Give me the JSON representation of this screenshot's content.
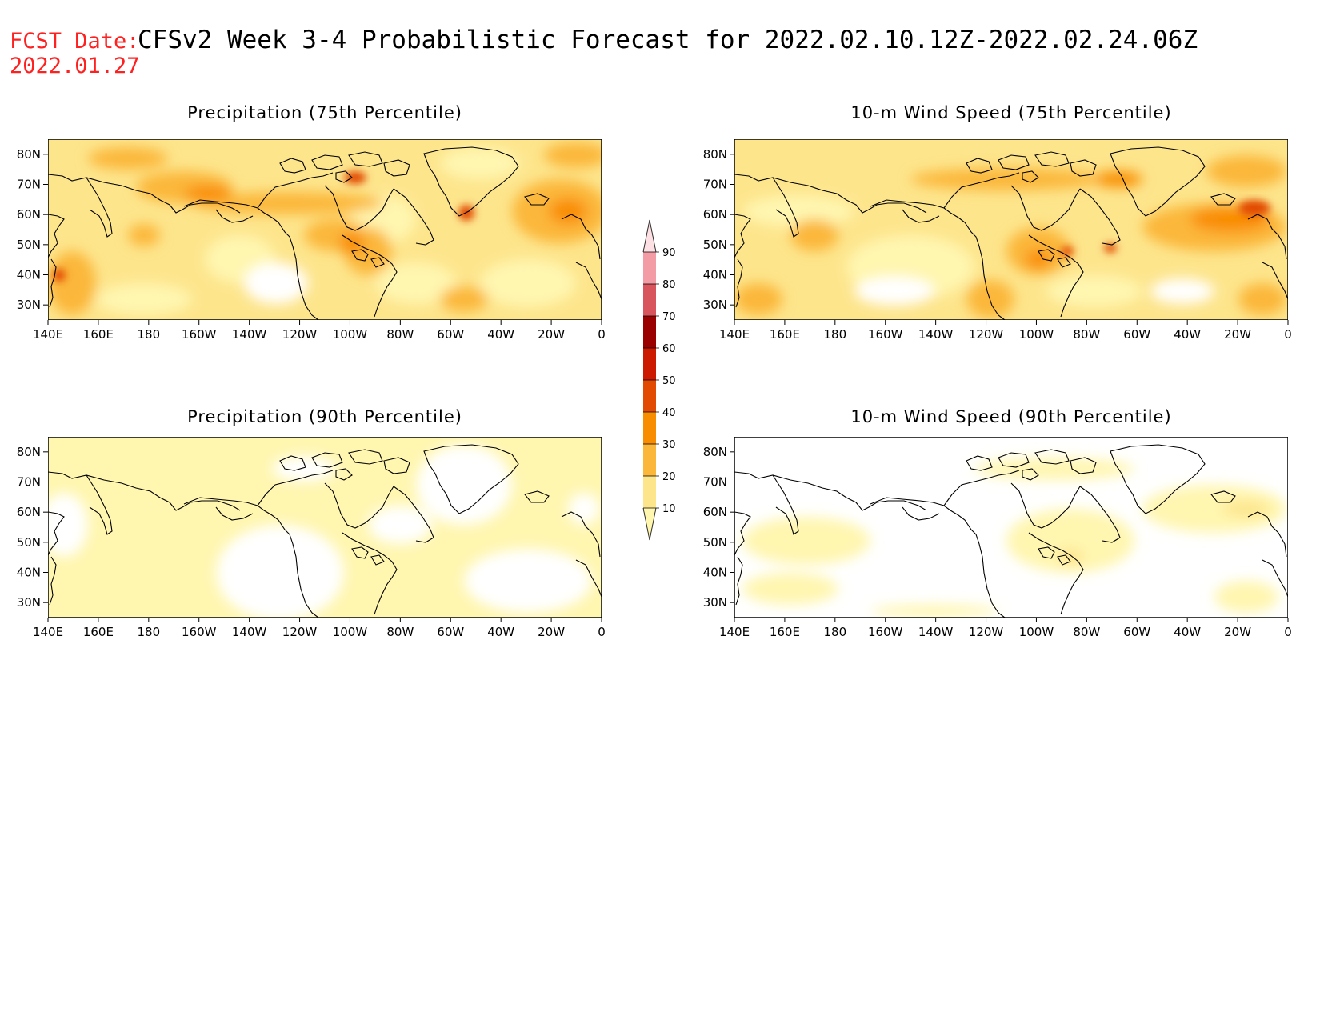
{
  "header": {
    "fcst_label": "FCST Date:",
    "fcst_date": "2022.01.27",
    "title": "CFSv2 Week 3-4 Probabilistic Forecast for 2022.02.10.12Z-2022.02.24.06Z"
  },
  "axes": {
    "x_ticks": [
      "140E",
      "160E",
      "180",
      "160W",
      "140W",
      "120W",
      "100W",
      "80W",
      "60W",
      "40W",
      "20W",
      "0"
    ],
    "y_ticks": [
      "80N",
      "70N",
      "60N",
      "50N",
      "40N",
      "30N"
    ],
    "lon_range_deg_east": [
      140,
      360
    ],
    "lat_range": [
      25,
      85
    ]
  },
  "colorbar": {
    "levels": [
      "10",
      "20",
      "30",
      "40",
      "50",
      "60",
      "70",
      "80",
      "90"
    ],
    "colors": [
      "#fff6b0",
      "#fde58c",
      "#fbb73a",
      "#f98d00",
      "#e14a00",
      "#cc1a00",
      "#9b0000",
      "#d9555e",
      "#f39ca6",
      "#fde0e4"
    ]
  },
  "panels": [
    {
      "id": "precip75",
      "title": "Precipitation (75th Percentile)"
    },
    {
      "id": "wind75",
      "title": "10-m Wind Speed (75th Percentile)"
    },
    {
      "id": "precip90",
      "title": "Precipitation (90th Percentile)"
    },
    {
      "id": "wind90",
      "title": "10-m Wind Speed (90th Percentile)"
    }
  ],
  "colors": {
    "coastline": "#000000",
    "title_red": "#ff2020"
  }
}
